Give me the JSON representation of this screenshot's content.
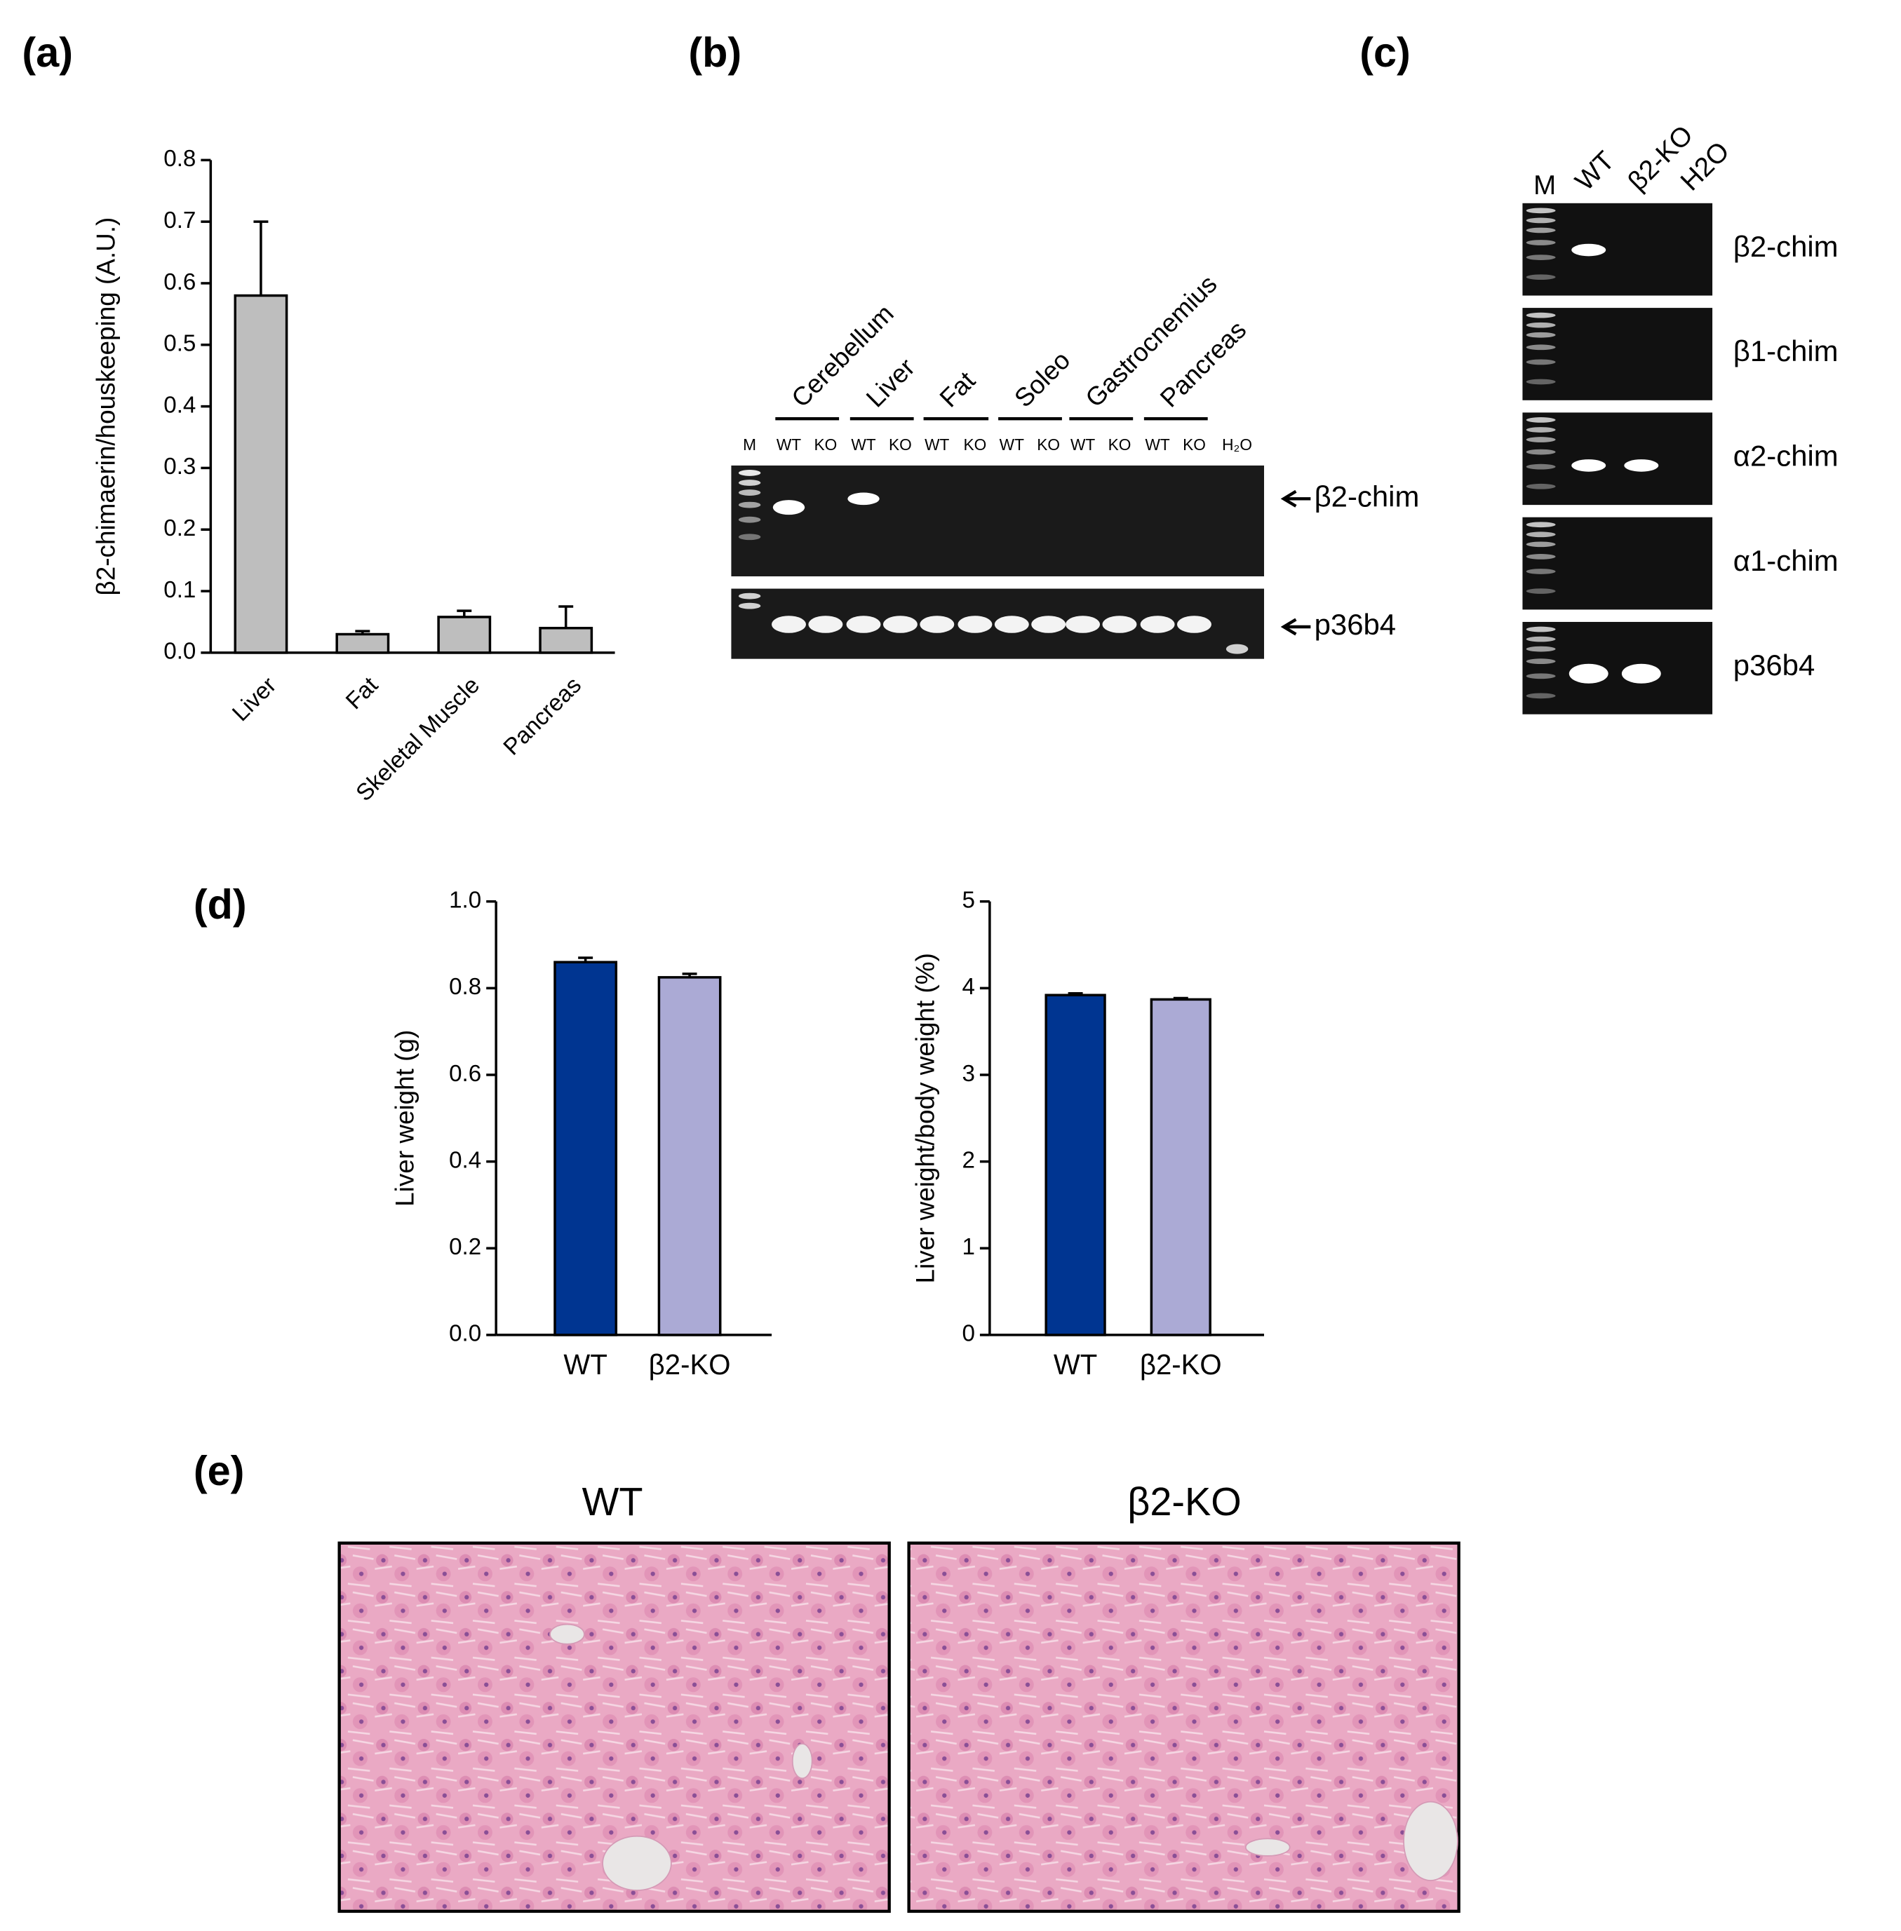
{
  "panels": {
    "a": "(a)",
    "b": "(b)",
    "c": "(c)",
    "d": "(d)",
    "e": "(e)"
  },
  "chart_data": [
    {
      "type": "bar",
      "y_label": "β2-chimaerin/houskeeping (A.U.)",
      "categories": [
        "Liver",
        "Fat",
        "Skeletal Muscle",
        "Pancreas"
      ],
      "values": [
        0.58,
        0.03,
        0.058,
        0.04
      ],
      "errors": [
        0.12,
        0.005,
        0.01,
        0.035
      ],
      "color": "#bebebe",
      "ylim": [
        0,
        0.8
      ],
      "yticks": [
        {
          "value": 0,
          "label": "0.0"
        },
        0.1,
        0.2,
        0.3,
        0.4,
        0.5,
        0.6,
        0.7,
        0.8
      ]
    },
    {
      "type": "bar",
      "y_label": "Liver weight (g)",
      "categories": [
        "WT",
        "β2-KO"
      ],
      "values": [
        0.86,
        0.825
      ],
      "errors": [
        0.01,
        0.008
      ],
      "colors": [
        "#003591",
        "#abaad5"
      ],
      "ylim": [
        0,
        1
      ],
      "yticks": [
        {
          "value": 0,
          "label": "0.0"
        },
        0.2,
        0.4,
        0.6,
        0.8,
        {
          "value": 1,
          "label": "1.0"
        }
      ]
    },
    {
      "type": "bar",
      "y_label": "Liver weight/body weight (%)",
      "categories": [
        "WT",
        "β2-KO"
      ],
      "values": [
        3.92,
        3.87
      ],
      "errors": [
        0.02,
        0.015
      ],
      "colors": [
        "#003591",
        "#abaad5"
      ],
      "ylim": [
        0,
        5
      ],
      "yticks": [
        0,
        1,
        2,
        3,
        4,
        5
      ]
    }
  ],
  "gel_b": {
    "tissues": [
      "Cerebellum",
      "Liver",
      "Fat",
      "Soleo",
      "Gastrocnemius",
      "Pancreas"
    ],
    "lanes": [
      "M",
      "WT",
      "KO",
      "WT",
      "KO",
      "WT",
      "KO",
      "WT",
      "KO",
      "WT",
      "KO",
      "WT",
      "KO",
      "H₂O"
    ],
    "bands": [
      "β2-chim",
      "p36b4"
    ]
  },
  "gel_c": {
    "lanes": [
      "M",
      "WT",
      "β2-KO",
      "H2O"
    ],
    "genes": [
      "β2-chim",
      "β1-chim",
      "α2-chim",
      "α1-chim",
      "p36b4"
    ]
  },
  "histology": {
    "labels": [
      "WT",
      "β2-KO"
    ]
  }
}
